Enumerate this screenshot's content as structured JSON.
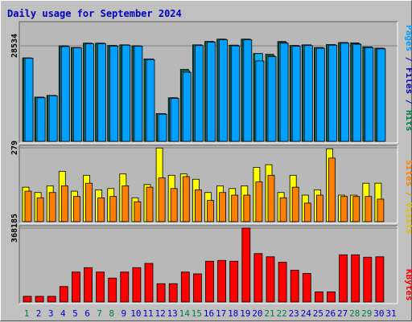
{
  "title": "Daily usage for September 2024",
  "colors": {
    "background": "#c0c0c0",
    "plot": "#b8b8b8",
    "title": "#0000c0",
    "pages": "#00a0ff",
    "files": "#00b0e8",
    "hits": "#008040",
    "visits": "#ffff00",
    "sites": "#ff8000",
    "kbytes": "#ff0000",
    "weekend": "#008040",
    "weekday": "#0000c0"
  },
  "axis_labels": {
    "pages": "Pages",
    "files": "Files",
    "hits": "Hits",
    "sites": "Sites",
    "visits": "Visits",
    "kbytes": "KBytes",
    "separator": " / "
  },
  "chart_data": [
    {
      "type": "bar",
      "title": "Daily usage for September 2024",
      "panel": "hits_files_pages",
      "categories": [
        "1",
        "2",
        "3",
        "4",
        "5",
        "6",
        "7",
        "8",
        "9",
        "10",
        "11",
        "12",
        "13",
        "14",
        "15",
        "16",
        "17",
        "18",
        "19",
        "20",
        "21",
        "22",
        "23",
        "24",
        "25",
        "26",
        "27",
        "28",
        "29",
        "30",
        "31"
      ],
      "weekend_days": [
        1,
        7,
        8,
        14,
        15,
        21,
        22,
        28,
        29
      ],
      "ytick": 28534,
      "ylim": [
        0,
        35000
      ],
      "series": [
        {
          "name": "Hits",
          "values": [
            24900,
            13200,
            13700,
            28500,
            28000,
            29300,
            29300,
            28600,
            28800,
            28500,
            24600,
            8300,
            13000,
            21500,
            28800,
            29800,
            30500,
            28700,
            30500,
            26200,
            26000,
            29800,
            28600,
            28800,
            28000,
            28900,
            29500,
            29400,
            28200,
            27800,
            null
          ]
        },
        {
          "name": "Files",
          "values": [
            24900,
            13200,
            13700,
            28500,
            28000,
            29300,
            29300,
            28600,
            28800,
            28500,
            24600,
            8300,
            13000,
            21000,
            28800,
            29800,
            30500,
            28700,
            30500,
            26200,
            25500,
            29500,
            28600,
            28800,
            28000,
            28900,
            29500,
            29200,
            28200,
            27800,
            null
          ]
        },
        {
          "name": "Pages",
          "values": [
            24800,
            13000,
            13600,
            28300,
            27900,
            29100,
            29100,
            28400,
            28700,
            28400,
            24400,
            8100,
            12800,
            20600,
            28600,
            29600,
            30300,
            28500,
            30300,
            24000,
            25300,
            29300,
            28400,
            28600,
            27800,
            28700,
            29300,
            29000,
            28000,
            27600,
            null
          ]
        }
      ]
    },
    {
      "type": "bar",
      "panel": "visits_sites",
      "categories": [
        "1",
        "2",
        "3",
        "4",
        "5",
        "6",
        "7",
        "8",
        "9",
        "10",
        "11",
        "12",
        "13",
        "14",
        "15",
        "16",
        "17",
        "18",
        "19",
        "20",
        "21",
        "22",
        "23",
        "24",
        "25",
        "26",
        "27",
        "28",
        "29",
        "30",
        "31"
      ],
      "ytick": 279,
      "ylim": [
        0,
        279
      ],
      "series": [
        {
          "name": "Visits",
          "values": [
            130,
            110,
            135,
            190,
            115,
            175,
            120,
            125,
            180,
            90,
            140,
            278,
            175,
            180,
            160,
            110,
            135,
            125,
            135,
            205,
            215,
            110,
            175,
            100,
            120,
            275,
            100,
            100,
            145,
            145,
            null
          ]
        },
        {
          "name": "Sites",
          "values": [
            115,
            90,
            110,
            135,
            95,
            145,
            90,
            95,
            135,
            75,
            130,
            165,
            125,
            170,
            120,
            80,
            110,
            100,
            100,
            150,
            175,
            90,
            130,
            70,
            100,
            240,
            95,
            95,
            95,
            85,
            null
          ]
        }
      ]
    },
    {
      "type": "bar",
      "panel": "kbytes",
      "categories": [
        "1",
        "2",
        "3",
        "4",
        "5",
        "6",
        "7",
        "8",
        "9",
        "10",
        "11",
        "12",
        "13",
        "14",
        "15",
        "16",
        "17",
        "18",
        "19",
        "20",
        "21",
        "22",
        "23",
        "24",
        "25",
        "26",
        "27",
        "28",
        "29",
        "30",
        "31"
      ],
      "ytick": 368185,
      "ylim": [
        0,
        368185
      ],
      "series": [
        {
          "name": "KBytes",
          "values": [
            28000,
            28000,
            28000,
            77000,
            149000,
            171000,
            149000,
            119000,
            149000,
            171000,
            192000,
            91000,
            91000,
            149000,
            140000,
            203000,
            207000,
            203000,
            368185,
            241000,
            225000,
            198000,
            158000,
            142000,
            50000,
            50000,
            235000,
            235000,
            223000,
            225000,
            null
          ]
        }
      ]
    }
  ]
}
